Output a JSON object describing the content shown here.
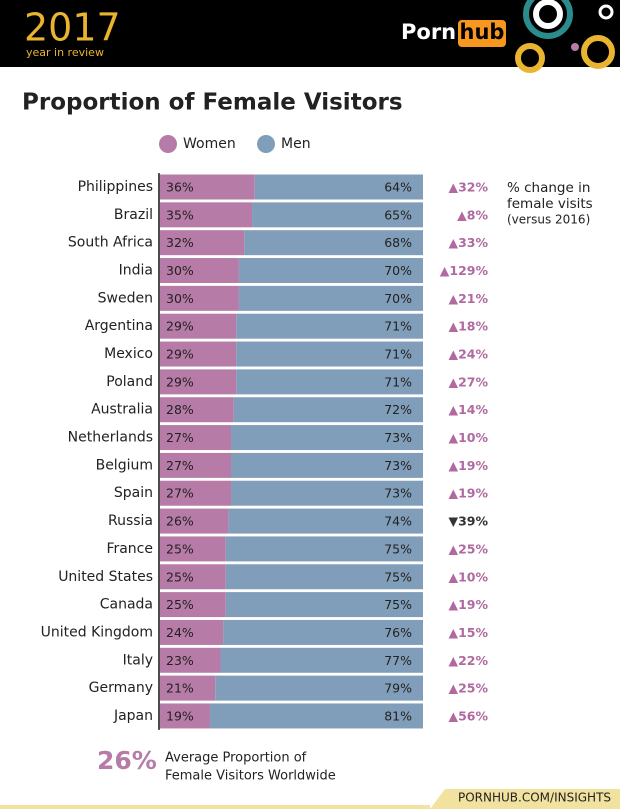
{
  "header": {
    "year": "2017",
    "tagline": "year in review",
    "logo_left": "Porn",
    "logo_right": "hub"
  },
  "chart_data": {
    "type": "stacked-bar-horizontal",
    "title": "Proportion of Female Visitors",
    "categories": [
      "Philippines",
      "Brazil",
      "South Africa",
      "India",
      "Sweden",
      "Argentina",
      "Mexico",
      "Poland",
      "Australia",
      "Netherlands",
      "Belgium",
      "Spain",
      "Russia",
      "France",
      "United States",
      "Canada",
      "United Kingdom",
      "Italy",
      "Germany",
      "Japan"
    ],
    "series": [
      {
        "name": "Women",
        "color": "#b77ba7",
        "values": [
          36,
          35,
          32,
          30,
          30,
          29,
          29,
          29,
          28,
          27,
          27,
          27,
          26,
          25,
          25,
          25,
          24,
          23,
          21,
          19
        ],
        "value_labels": [
          "36%",
          "35%",
          "32%",
          "30%",
          "30%",
          "29%",
          "29%",
          "29%",
          "28%",
          "27%",
          "27%",
          "27%",
          "26%",
          "25%",
          "25%",
          "25%",
          "24%",
          "23%",
          "21%",
          "19%"
        ]
      },
      {
        "name": "Men",
        "color": "#809eb9",
        "values": [
          64,
          65,
          68,
          70,
          70,
          71,
          71,
          71,
          72,
          73,
          73,
          73,
          74,
          75,
          75,
          75,
          76,
          77,
          79,
          81
        ],
        "value_labels": [
          "64%",
          "65%",
          "68%",
          "70%",
          "70%",
          "71%",
          "71%",
          "71%",
          "72%",
          "73%",
          "73%",
          "73%",
          "74%",
          "75%",
          "75%",
          "75%",
          "76%",
          "77%",
          "79%",
          "81%"
        ]
      }
    ],
    "xlim": [
      0,
      100
    ],
    "change": {
      "note": [
        "% change in",
        "female visits",
        "(versus 2016)"
      ],
      "values": [
        32,
        8,
        33,
        129,
        21,
        18,
        24,
        27,
        14,
        10,
        19,
        19,
        -39,
        25,
        10,
        19,
        15,
        22,
        25,
        56
      ],
      "value_labels": [
        "▲32%",
        "▲8%",
        "▲33%",
        "▲129%",
        "▲21%",
        "▲18%",
        "▲24%",
        "▲27%",
        "▲14%",
        "▲10%",
        "▲19%",
        "▲19%",
        "▼39%",
        "▲25%",
        "▲10%",
        "▲19%",
        "▲15%",
        "▲22%",
        "▲25%",
        "▲56%"
      ],
      "up_color": "#b06aa0",
      "down_color": "#333333"
    }
  },
  "footer": {
    "average": "26%",
    "average_text": [
      "Average Proportion of",
      "Female Visitors Worldwide"
    ],
    "source": "PORNHUB.COM/INSIGHTS"
  }
}
